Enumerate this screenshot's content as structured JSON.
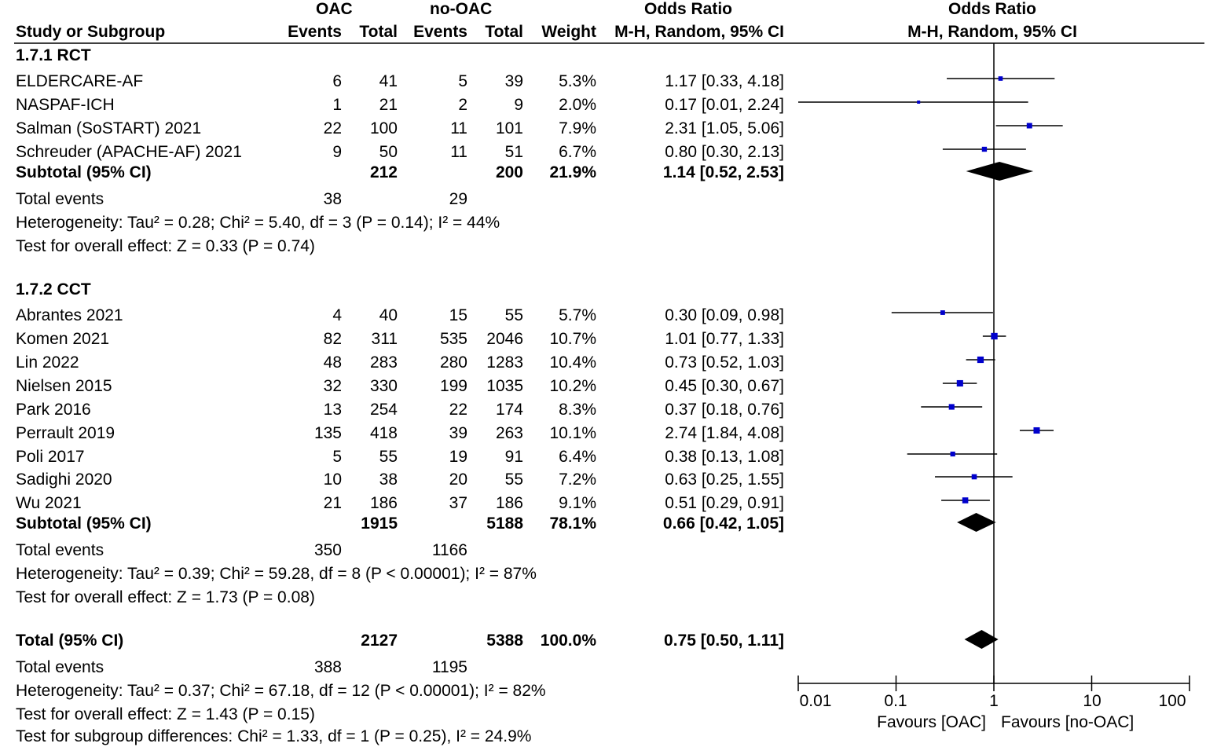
{
  "header": {
    "group_oac": "OAC",
    "group_nooac": "no-OAC",
    "odds_ratio_label": "Odds Ratio",
    "plot_title": "Odds Ratio",
    "col_study": "Study or Subgroup",
    "col_events1": "Events",
    "col_total1": "Total",
    "col_events2": "Events",
    "col_total2": "Total",
    "col_weight": "Weight",
    "col_method": "M-H, Random, 95% CI",
    "plot_method": "M-H, Random, 95% CI"
  },
  "subgroups": [
    {
      "title": "1.7.1 RCT",
      "studies": [
        {
          "name": "ELDERCARE-AF",
          "e1": "6",
          "n1": "41",
          "e2": "5",
          "n2": "39",
          "weight": "5.3%",
          "ci_text": "1.17 [0.33, 4.18]"
        },
        {
          "name": "NASPAF-ICH",
          "e1": "1",
          "n1": "21",
          "e2": "2",
          "n2": "9",
          "weight": "2.0%",
          "ci_text": "0.17 [0.01, 2.24]"
        },
        {
          "name": "Salman (SoSTART) 2021",
          "e1": "22",
          "n1": "100",
          "e2": "11",
          "n2": "101",
          "weight": "7.9%",
          "ci_text": "2.31 [1.05, 5.06]"
        },
        {
          "name": "Schreuder (APACHE-AF) 2021",
          "e1": "9",
          "n1": "50",
          "e2": "11",
          "n2": "51",
          "weight": "6.7%",
          "ci_text": "0.80 [0.30, 2.13]"
        }
      ],
      "subtotal": {
        "label": "Subtotal (95% CI)",
        "n1": "212",
        "n2": "200",
        "weight": "21.9%",
        "ci_text": "1.14 [0.52, 2.53]"
      },
      "total_events": {
        "label": "Total events",
        "e1": "38",
        "e2": "29"
      },
      "heterogeneity": "Heterogeneity: Tau² = 0.28; Chi² = 5.40, df = 3 (P = 0.14); I² = 44%",
      "overall_effect": "Test for overall effect: Z = 0.33 (P = 0.74)"
    },
    {
      "title": "1.7.2 CCT",
      "studies": [
        {
          "name": "Abrantes 2021",
          "e1": "4",
          "n1": "40",
          "e2": "15",
          "n2": "55",
          "weight": "5.7%",
          "ci_text": "0.30 [0.09, 0.98]"
        },
        {
          "name": "Komen 2021",
          "e1": "82",
          "n1": "311",
          "e2": "535",
          "n2": "2046",
          "weight": "10.7%",
          "ci_text": "1.01 [0.77, 1.33]"
        },
        {
          "name": "Lin 2022",
          "e1": "48",
          "n1": "283",
          "e2": "280",
          "n2": "1283",
          "weight": "10.4%",
          "ci_text": "0.73 [0.52, 1.03]"
        },
        {
          "name": "Nielsen 2015",
          "e1": "32",
          "n1": "330",
          "e2": "199",
          "n2": "1035",
          "weight": "10.2%",
          "ci_text": "0.45 [0.30, 0.67]"
        },
        {
          "name": "Park 2016",
          "e1": "13",
          "n1": "254",
          "e2": "22",
          "n2": "174",
          "weight": "8.3%",
          "ci_text": "0.37 [0.18, 0.76]"
        },
        {
          "name": "Perrault 2019",
          "e1": "135",
          "n1": "418",
          "e2": "39",
          "n2": "263",
          "weight": "10.1%",
          "ci_text": "2.74 [1.84, 4.08]"
        },
        {
          "name": "Poli 2017",
          "e1": "5",
          "n1": "55",
          "e2": "19",
          "n2": "91",
          "weight": "6.4%",
          "ci_text": "0.38 [0.13, 1.08]"
        },
        {
          "name": "Sadighi 2020",
          "e1": "10",
          "n1": "38",
          "e2": "20",
          "n2": "55",
          "weight": "7.2%",
          "ci_text": "0.63 [0.25, 1.55]"
        },
        {
          "name": "Wu 2021",
          "e1": "21",
          "n1": "186",
          "e2": "37",
          "n2": "186",
          "weight": "9.1%",
          "ci_text": "0.51 [0.29, 0.91]"
        }
      ],
      "subtotal": {
        "label": "Subtotal (95% CI)",
        "n1": "1915",
        "n2": "5188",
        "weight": "78.1%",
        "ci_text": "0.66 [0.42, 1.05]"
      },
      "total_events": {
        "label": "Total events",
        "e1": "350",
        "e2": "1166"
      },
      "heterogeneity": "Heterogeneity: Tau² = 0.39; Chi² = 59.28, df = 8 (P < 0.00001); I² = 87%",
      "overall_effect": "Test for overall effect: Z = 1.73 (P = 0.08)"
    }
  ],
  "overall": {
    "label": "Total (95% CI)",
    "n1": "2127",
    "n2": "5388",
    "weight": "100.0%",
    "ci_text": "0.75 [0.50, 1.11]",
    "total_events": {
      "label": "Total events",
      "e1": "388",
      "e2": "1195"
    },
    "heterogeneity": "Heterogeneity: Tau² = 0.37; Chi² = 67.18, df = 12 (P < 0.00001); I² = 82%",
    "overall_effect": "Test for overall effect: Z = 1.43 (P = 0.15)",
    "subgroup_diff": "Test for subgroup differences: Chi² = 1.33, df = 1 (P = 0.25), I² = 24.9%"
  },
  "axis": {
    "ticks": [
      "0.01",
      "0.1",
      "1",
      "10",
      "100"
    ],
    "favours_left": "Favours [OAC]",
    "favours_right": "Favours [no-OAC]"
  },
  "colors": {
    "point": "#0000cc",
    "line": "#000000",
    "diamond": "#000000"
  },
  "chart_data": {
    "type": "forest",
    "title": "Odds Ratio",
    "subtitle": "M-H, Random, 95% CI",
    "scale": "log",
    "xlim": [
      0.01,
      100
    ],
    "xlabel_left": "Favours [OAC]",
    "xlabel_right": "Favours [no-OAC]",
    "studies": [
      {
        "name": "ELDERCARE-AF",
        "or": 1.17,
        "lo": 0.33,
        "hi": 4.18,
        "weight": 5.3
      },
      {
        "name": "NASPAF-ICH",
        "or": 0.17,
        "lo": 0.01,
        "hi": 2.24,
        "weight": 2.0
      },
      {
        "name": "Salman (SoSTART) 2021",
        "or": 2.31,
        "lo": 1.05,
        "hi": 5.06,
        "weight": 7.9
      },
      {
        "name": "Schreuder (APACHE-AF) 2021",
        "or": 0.8,
        "lo": 0.3,
        "hi": 2.13,
        "weight": 6.7
      },
      {
        "name": "Abrantes 2021",
        "or": 0.3,
        "lo": 0.09,
        "hi": 0.98,
        "weight": 5.7
      },
      {
        "name": "Komen 2021",
        "or": 1.01,
        "lo": 0.77,
        "hi": 1.33,
        "weight": 10.7
      },
      {
        "name": "Lin 2022",
        "or": 0.73,
        "lo": 0.52,
        "hi": 1.03,
        "weight": 10.4
      },
      {
        "name": "Nielsen 2015",
        "or": 0.45,
        "lo": 0.3,
        "hi": 0.67,
        "weight": 10.2
      },
      {
        "name": "Park 2016",
        "or": 0.37,
        "lo": 0.18,
        "hi": 0.76,
        "weight": 8.3
      },
      {
        "name": "Perrault 2019",
        "or": 2.74,
        "lo": 1.84,
        "hi": 4.08,
        "weight": 10.1
      },
      {
        "name": "Poli 2017",
        "or": 0.38,
        "lo": 0.13,
        "hi": 1.08,
        "weight": 6.4
      },
      {
        "name": "Sadighi 2020",
        "or": 0.63,
        "lo": 0.25,
        "hi": 1.55,
        "weight": 7.2
      },
      {
        "name": "Wu 2021",
        "or": 0.51,
        "lo": 0.29,
        "hi": 0.91,
        "weight": 9.1
      }
    ],
    "pooled": [
      {
        "name": "Subtotal 1.7.1 RCT",
        "or": 1.14,
        "lo": 0.52,
        "hi": 2.53
      },
      {
        "name": "Subtotal 1.7.2 CCT",
        "or": 0.66,
        "lo": 0.42,
        "hi": 1.05
      },
      {
        "name": "Total (95% CI)",
        "or": 0.75,
        "lo": 0.5,
        "hi": 1.11
      }
    ]
  }
}
